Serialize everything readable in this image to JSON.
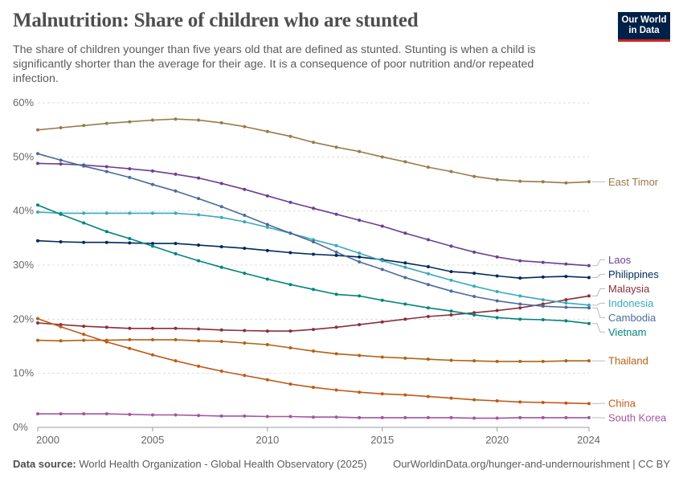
{
  "header": {
    "title": "Malnutrition: Share of children who are stunted",
    "subtitle": "The share of children younger than five years old that are defined as stunted. Stunting is when a child is significantly shorter than the average for their age. It is a consequence of poor nutrition and/or repeated infection.",
    "logo_line1": "Our World",
    "logo_line2": "in Data"
  },
  "footer": {
    "source_label": "Data source:",
    "source_text": "World Health Organization - Global Health Observatory (2025)",
    "right_text": "OurWorldinData.org/hunger-and-undernourishment | CC BY"
  },
  "colors": {
    "axis": "#999999",
    "grid": "#dddddd",
    "logo_bg": "#002147",
    "logo_accent": "#ce261e"
  },
  "chart_data": {
    "type": "line",
    "title": "Malnutrition: Share of children who are stunted",
    "xlabel": "",
    "ylabel": "",
    "xlim": [
      2000,
      2024
    ],
    "ylim": [
      0,
      60
    ],
    "x_ticks": [
      2000,
      2005,
      2010,
      2015,
      2020,
      2024
    ],
    "y_ticks": [
      0,
      10,
      20,
      30,
      40,
      50,
      60
    ],
    "y_tick_labels": [
      "0%",
      "10%",
      "20%",
      "30%",
      "40%",
      "50%",
      "60%"
    ],
    "grid": "horizontal dashed",
    "legend": "right (labels at line ends)",
    "x": [
      2000,
      2001,
      2002,
      2003,
      2004,
      2005,
      2006,
      2007,
      2008,
      2009,
      2010,
      2011,
      2012,
      2013,
      2014,
      2015,
      2016,
      2017,
      2018,
      2019,
      2020,
      2021,
      2022,
      2023,
      2024
    ],
    "series": [
      {
        "name": "East Timor",
        "color": "#9a7a49",
        "values": [
          55.0,
          55.4,
          55.8,
          56.2,
          56.5,
          56.8,
          57.0,
          56.8,
          56.3,
          55.6,
          54.7,
          53.8,
          52.7,
          51.8,
          51.0,
          50.0,
          49.1,
          48.1,
          47.3,
          46.4,
          45.8,
          45.5,
          45.4,
          45.2,
          45.4
        ]
      },
      {
        "name": "Laos",
        "color": "#6d3e91",
        "values": [
          48.8,
          48.7,
          48.5,
          48.2,
          47.8,
          47.4,
          46.8,
          46.1,
          45.1,
          44.0,
          42.8,
          41.6,
          40.5,
          39.4,
          38.3,
          37.2,
          35.9,
          34.7,
          33.5,
          32.4,
          31.5,
          30.8,
          30.5,
          30.2,
          29.9
        ]
      },
      {
        "name": "Philippines",
        "color": "#00295b",
        "values": [
          34.5,
          34.3,
          34.2,
          34.2,
          34.1,
          34.0,
          34.0,
          33.7,
          33.4,
          33.1,
          32.7,
          32.3,
          32.0,
          31.8,
          31.5,
          31.0,
          30.4,
          29.7,
          28.8,
          28.5,
          28.0,
          27.6,
          27.8,
          27.9,
          27.7
        ]
      },
      {
        "name": "Malaysia",
        "color": "#883039",
        "values": [
          19.3,
          19.0,
          18.7,
          18.5,
          18.3,
          18.3,
          18.3,
          18.2,
          18.0,
          17.9,
          17.8,
          17.8,
          18.1,
          18.5,
          19.0,
          19.5,
          20.0,
          20.5,
          20.8,
          21.2,
          21.6,
          22.1,
          22.8,
          23.6,
          24.3
        ]
      },
      {
        "name": "Indonesia",
        "color": "#38aaba",
        "values": [
          39.8,
          39.6,
          39.6,
          39.6,
          39.6,
          39.6,
          39.6,
          39.3,
          38.8,
          38.0,
          37.0,
          35.9,
          34.7,
          33.6,
          32.2,
          30.8,
          29.6,
          28.4,
          27.2,
          26.1,
          25.1,
          24.3,
          23.6,
          23.0,
          22.6
        ]
      },
      {
        "name": "Cambodia",
        "color": "#4c6a9c",
        "values": [
          50.6,
          49.4,
          48.3,
          47.3,
          46.2,
          44.9,
          43.7,
          42.3,
          40.8,
          39.2,
          37.5,
          35.9,
          34.3,
          32.4,
          30.6,
          29.2,
          27.7,
          26.4,
          25.2,
          24.2,
          23.4,
          22.8,
          22.4,
          22.2,
          22.1
        ]
      },
      {
        "name": "Vietnam",
        "color": "#00847e",
        "values": [
          41.1,
          39.4,
          37.8,
          36.2,
          34.9,
          33.5,
          32.1,
          30.8,
          29.6,
          28.5,
          27.4,
          26.4,
          25.5,
          24.6,
          24.3,
          23.5,
          22.8,
          22.1,
          21.5,
          20.8,
          20.3,
          20.0,
          19.9,
          19.7,
          19.2
        ]
      },
      {
        "name": "Thailand",
        "color": "#b16214",
        "values": [
          16.1,
          16.0,
          16.1,
          16.1,
          16.2,
          16.2,
          16.2,
          16.0,
          15.9,
          15.6,
          15.3,
          14.7,
          14.1,
          13.6,
          13.3,
          13.0,
          12.8,
          12.6,
          12.4,
          12.3,
          12.2,
          12.2,
          12.2,
          12.3,
          12.3
        ]
      },
      {
        "name": "China",
        "color": "#c05917",
        "values": [
          20.1,
          18.6,
          17.2,
          15.8,
          14.6,
          13.4,
          12.3,
          11.3,
          10.4,
          9.6,
          8.8,
          8.0,
          7.4,
          6.9,
          6.5,
          6.2,
          6.0,
          5.7,
          5.4,
          5.1,
          4.9,
          4.7,
          4.6,
          4.5,
          4.4
        ]
      },
      {
        "name": "South Korea",
        "color": "#a2559c",
        "values": [
          2.5,
          2.5,
          2.5,
          2.5,
          2.4,
          2.3,
          2.3,
          2.2,
          2.1,
          2.1,
          2.0,
          2.0,
          1.9,
          1.9,
          1.8,
          1.8,
          1.8,
          1.8,
          1.8,
          1.7,
          1.7,
          1.8,
          1.8,
          1.8,
          1.8
        ]
      }
    ],
    "end_labels": [
      {
        "name": "East Timor",
        "color": "#9a7a49"
      },
      {
        "name": "Laos",
        "color": "#6d3e91"
      },
      {
        "name": "Philippines",
        "color": "#00295b"
      },
      {
        "name": "Malaysia",
        "color": "#883039"
      },
      {
        "name": "Indonesia",
        "color": "#38aaba"
      },
      {
        "name": "Cambodia",
        "color": "#4c6a9c"
      },
      {
        "name": "Vietnam",
        "color": "#00847e"
      },
      {
        "name": "Thailand",
        "color": "#b16214"
      },
      {
        "name": "China",
        "color": "#c05917"
      },
      {
        "name": "South Korea",
        "color": "#a2559c"
      }
    ]
  }
}
